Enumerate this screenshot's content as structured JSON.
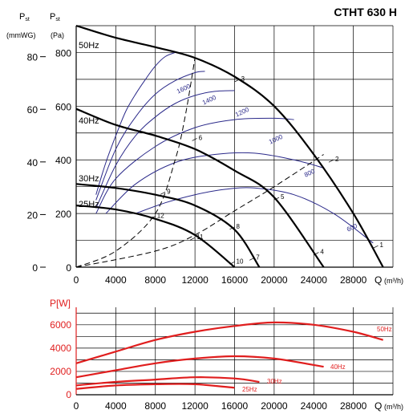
{
  "chart_data": [
    {
      "type": "line",
      "title": "CTHT 630 H",
      "y_labels": {
        "left_symbol": "P",
        "left_sub": "st",
        "left_unit": "(mmWG)",
        "right_symbol": "P",
        "right_sub": "st",
        "right_unit": "(Pa)"
      },
      "xlabel": "Q",
      "xunit": "(m³/h)",
      "x_ticks": [
        "0",
        "4000",
        "8000",
        "12000",
        "16000",
        "20000",
        "24000",
        "28000"
      ],
      "y_ticks_pa": [
        "0",
        "200",
        "400",
        "600",
        "800"
      ],
      "y_ticks_mm": [
        "0",
        "20",
        "40",
        "60",
        "80"
      ],
      "xlim": [
        0,
        32000
      ],
      "ylim": [
        0,
        900
      ],
      "grid": true,
      "series": [
        {
          "name": "50Hz",
          "x": [
            0,
            4000,
            8000,
            12000,
            16000,
            20000,
            24000,
            28000,
            31000
          ],
          "y": [
            900,
            855,
            820,
            780,
            710,
            600,
            420,
            200,
            0
          ]
        },
        {
          "name": "40Hz",
          "x": [
            0,
            4000,
            8000,
            12000,
            16000,
            20000,
            25000
          ],
          "y": [
            590,
            530,
            490,
            440,
            360,
            260,
            0
          ]
        },
        {
          "name": "30Hz",
          "x": [
            0,
            4000,
            8000,
            12000,
            16000,
            18500
          ],
          "y": [
            310,
            295,
            270,
            230,
            140,
            0
          ]
        },
        {
          "name": "25Hz",
          "x": [
            0,
            4000,
            8000,
            12000,
            16000
          ],
          "y": [
            230,
            215,
            180,
            120,
            0
          ]
        }
      ],
      "rpm_curves": [
        {
          "label": "1600",
          "x": [
            2000,
            3000,
            4000,
            5000,
            6000,
            7000,
            8000,
            9000,
            10000
          ],
          "y": [
            270,
            390,
            490,
            580,
            645,
            700,
            750,
            785,
            800
          ]
        },
        {
          "label": "1400",
          "x": [
            2000,
            4000,
            6000,
            8000,
            10000,
            12000,
            13000
          ],
          "y": [
            250,
            440,
            560,
            645,
            695,
            725,
            730
          ]
        },
        {
          "label": "1200",
          "x": [
            2000,
            4000,
            6000,
            8000,
            10000,
            12000,
            14000,
            16000
          ],
          "y": [
            220,
            380,
            490,
            560,
            610,
            640,
            655,
            658
          ]
        },
        {
          "label": "1000",
          "x": [
            2000,
            4000,
            8000,
            12000,
            16000,
            20000,
            22000
          ],
          "y": [
            200,
            330,
            450,
            520,
            550,
            555,
            550
          ]
        },
        {
          "label": "800",
          "x": [
            3000,
            6000,
            10000,
            14000,
            18000,
            22000,
            25000
          ],
          "y": [
            200,
            310,
            390,
            420,
            425,
            400,
            370
          ]
        },
        {
          "label": "600",
          "x": [
            6000,
            9000,
            12000,
            15000,
            18000,
            22000,
            26000,
            30000
          ],
          "y": [
            200,
            240,
            270,
            290,
            295,
            270,
            200,
            90
          ]
        }
      ],
      "system_curves": [
        {
          "style": "dashed",
          "x": [
            0,
            4000,
            8000,
            10000,
            11000,
            12000
          ],
          "y": [
            0,
            60,
            200,
            400,
            560,
            780
          ]
        },
        {
          "style": "dashed",
          "x": [
            0,
            8000,
            12000,
            16000,
            20000,
            25000
          ],
          "y": [
            0,
            60,
            120,
            210,
            300,
            420
          ]
        }
      ],
      "points": [
        {
          "label": "1",
          "x": 30500,
          "y": 80
        },
        {
          "label": "2",
          "x": 26000,
          "y": 400
        },
        {
          "label": "3",
          "x": 16500,
          "y": 700
        },
        {
          "label": "4",
          "x": 24500,
          "y": 55
        },
        {
          "label": "5",
          "x": 20500,
          "y": 260
        },
        {
          "label": "6",
          "x": 12200,
          "y": 480
        },
        {
          "label": "7",
          "x": 18000,
          "y": 35
        },
        {
          "label": "8",
          "x": 16000,
          "y": 150
        },
        {
          "label": "9",
          "x": 9000,
          "y": 280
        },
        {
          "label": "10",
          "x": 16000,
          "y": 20
        },
        {
          "label": "11",
          "x": 12000,
          "y": 110
        },
        {
          "label": "12",
          "x": 8000,
          "y": 190
        }
      ]
    },
    {
      "type": "line",
      "ylabel": "P[W]",
      "x_ticks": [
        "0",
        "4000",
        "8000",
        "12000",
        "16000",
        "20000",
        "24000",
        "28000"
      ],
      "xlabel": "Q",
      "xunit": "(m³/h)",
      "y_ticks": [
        "0",
        "2000",
        "4000",
        "6000"
      ],
      "xlim": [
        0,
        32000
      ],
      "ylim": [
        0,
        7500
      ],
      "grid": true,
      "line_color": "#e01e1e",
      "series": [
        {
          "name": "50Hz",
          "x": [
            0,
            4000,
            8000,
            12000,
            16000,
            20000,
            24000,
            28000,
            31000
          ],
          "y": [
            2700,
            3700,
            4700,
            5400,
            5900,
            6200,
            6000,
            5400,
            4700
          ]
        },
        {
          "name": "40Hz",
          "x": [
            0,
            4000,
            8000,
            12000,
            16000,
            20000,
            25000
          ],
          "y": [
            1500,
            2100,
            2700,
            3100,
            3300,
            3100,
            2400
          ]
        },
        {
          "name": "30Hz",
          "x": [
            0,
            4000,
            8000,
            12000,
            16000,
            18500
          ],
          "y": [
            800,
            1100,
            1300,
            1500,
            1400,
            1100
          ]
        },
        {
          "name": "25Hz",
          "x": [
            0,
            4000,
            8000,
            12000,
            16000
          ],
          "y": [
            500,
            800,
            900,
            900,
            600
          ]
        }
      ]
    }
  ]
}
